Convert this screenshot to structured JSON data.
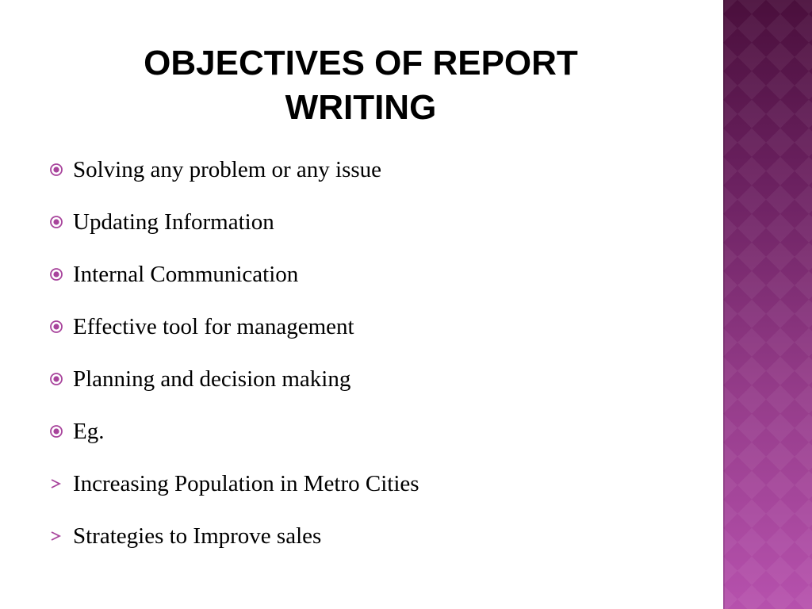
{
  "slide": {
    "title_line1": "OBJECTIVES OF REPORT",
    "title_line2": "WRITING",
    "accent_color": "#a8449c",
    "bullets": [
      {
        "text": "Solving any problem or any issue",
        "icon": "target-bullet-icon"
      },
      {
        "text": "Updating Information",
        "icon": "target-bullet-icon"
      },
      {
        "text": "Internal Communication",
        "icon": "target-bullet-icon"
      },
      {
        "text": "Effective tool for management",
        "icon": "target-bullet-icon"
      },
      {
        "text": "Planning and decision making",
        "icon": "target-bullet-icon"
      },
      {
        "text": "Eg.",
        "icon": "target-bullet-icon"
      },
      {
        "text": "Increasing Population in Metro Cities",
        "icon": "arrow-bullet-icon"
      },
      {
        "text": "Strategies to Improve sales",
        "icon": "arrow-bullet-icon"
      }
    ]
  }
}
